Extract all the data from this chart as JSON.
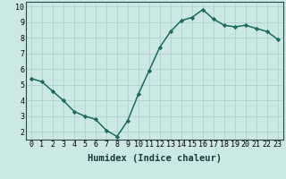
{
  "xlabel": "Humidex (Indice chaleur)",
  "ylabel": "",
  "x": [
    0,
    1,
    2,
    3,
    4,
    5,
    6,
    7,
    8,
    9,
    10,
    11,
    12,
    13,
    14,
    15,
    16,
    17,
    18,
    19,
    20,
    21,
    22,
    23
  ],
  "y": [
    5.4,
    5.2,
    4.6,
    4.0,
    3.3,
    3.0,
    2.8,
    2.1,
    1.7,
    2.7,
    4.4,
    5.9,
    7.4,
    8.4,
    9.1,
    9.3,
    9.8,
    9.2,
    8.8,
    8.7,
    8.8,
    8.6,
    8.4,
    7.9
  ],
  "line_color": "#1a6b5a",
  "marker": "D",
  "marker_size": 2.2,
  "bg_color": "#cce8e4",
  "grid_color": "#aacfcc",
  "xlim": [
    -0.5,
    23.5
  ],
  "ylim": [
    1.5,
    10.3
  ],
  "yticks": [
    2,
    3,
    4,
    5,
    6,
    7,
    8,
    9,
    10
  ],
  "xtick_labels": [
    "0",
    "1",
    "2",
    "3",
    "4",
    "5",
    "6",
    "7",
    "8",
    "9",
    "10",
    "11",
    "12",
    "13",
    "14",
    "15",
    "16",
    "17",
    "18",
    "19",
    "20",
    "21",
    "22",
    "23"
  ],
  "xlabel_fontsize": 7.5,
  "tick_fontsize": 6.0,
  "linewidth": 1.1
}
